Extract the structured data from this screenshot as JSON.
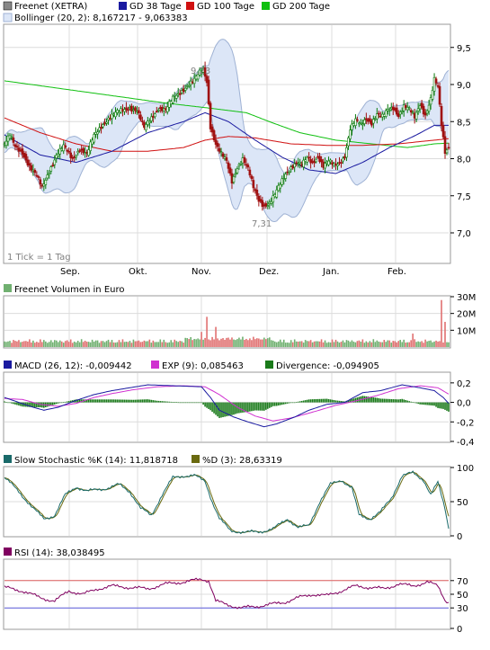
{
  "colors": {
    "background": "#ffffff",
    "grid": "#dcdcdc",
    "frame": "#9a9a9a",
    "bollinger_fill": "#dce6f7",
    "bollinger_line": "#9fb2d4",
    "candle_up": "#0a7a0a",
    "candle_down": "#a01010",
    "gd38": "#1a1aa0",
    "gd100": "#d01010",
    "gd200": "#10c010",
    "volume_up": "#70b070",
    "volume_down": "#e07070",
    "macd": "#1a1aa0",
    "exp": "#d030d0",
    "divergence": "#1a7a1a",
    "stoch_k": "#1a6a6a",
    "stoch_d": "#6a6a10",
    "rsi": "#800060",
    "rsi_upper": "#e06060",
    "rsi_lower": "#6060e0"
  },
  "price_panel": {
    "legend": [
      {
        "label": "Freenet (XETRA)",
        "color": "#888888"
      },
      {
        "label": "GD 38 Tage",
        "color": "#1a1aa0"
      },
      {
        "label": "GD 100 Tage",
        "color": "#d01010"
      },
      {
        "label": "GD 200 Tage",
        "color": "#10c010"
      }
    ],
    "bollinger_label": "Bollinger (20, 2): 8,167217 - 9,063383",
    "max_label": "9,23",
    "min_label": "7,31",
    "tick_note": "1 Tick = 1 Tag",
    "x_labels": [
      "Sep.",
      "Okt.",
      "Nov.",
      "Dez.",
      "Jan.",
      "Feb."
    ]
  },
  "volume_panel": {
    "legend": "Freenet Volumen in Euro"
  },
  "macd_panel": {
    "legend": [
      {
        "label": "MACD (26, 12): -0,009442",
        "color": "#1a1aa0"
      },
      {
        "label": "EXP (9): 0,085463",
        "color": "#d030d0"
      },
      {
        "label": "Divergence: -0,094905",
        "color": "#1a7a1a"
      }
    ]
  },
  "stoch_panel": {
    "legend": [
      {
        "label": "Slow Stochastic %K (14): 11,818718",
        "color": "#1a6a6a"
      },
      {
        "label": "%D (3): 28,63319",
        "color": "#6a6a10"
      }
    ]
  },
  "rsi_panel": {
    "legend": {
      "label": "RSI (14): 38,038495",
      "color": "#800060"
    }
  },
  "chart_data": [
    {
      "type": "line",
      "title": "Freenet (XETRA)",
      "x_months": [
        "Sep.",
        "Okt.",
        "Nov.",
        "Dez.",
        "Jan.",
        "Feb."
      ],
      "ylim": [
        6.6,
        9.8
      ],
      "yticks": [
        "7,0",
        "7,5",
        "8,0",
        "8,5",
        "9,0",
        "9,5"
      ],
      "annotations": {
        "max": 9.23,
        "min": 7.31
      },
      "close_anchors": [
        [
          0,
          8.2
        ],
        [
          3,
          8.3
        ],
        [
          6,
          8.15
        ],
        [
          10,
          8.1
        ],
        [
          14,
          7.9
        ],
        [
          18,
          7.75
        ],
        [
          21,
          7.6
        ],
        [
          25,
          7.85
        ],
        [
          29,
          8.05
        ],
        [
          33,
          8.15
        ],
        [
          38,
          8.0
        ],
        [
          42,
          8.15
        ],
        [
          46,
          8.05
        ],
        [
          50,
          8.3
        ],
        [
          54,
          8.45
        ],
        [
          58,
          8.55
        ],
        [
          62,
          8.6
        ],
        [
          66,
          8.65
        ],
        [
          70,
          8.7
        ],
        [
          74,
          8.65
        ],
        [
          78,
          8.4
        ],
        [
          82,
          8.55
        ],
        [
          86,
          8.7
        ],
        [
          90,
          8.65
        ],
        [
          94,
          8.8
        ],
        [
          98,
          8.9
        ],
        [
          102,
          9.0
        ],
        [
          106,
          9.05
        ],
        [
          109,
          9.15
        ],
        [
          111,
          9.2
        ],
        [
          113,
          9.05
        ],
        [
          115,
          8.45
        ],
        [
          118,
          8.2
        ],
        [
          121,
          8.05
        ],
        [
          124,
          7.95
        ],
        [
          127,
          7.7
        ],
        [
          130,
          7.9
        ],
        [
          133,
          8.0
        ],
        [
          136,
          7.85
        ],
        [
          139,
          7.6
        ],
        [
          142,
          7.45
        ],
        [
          145,
          7.38
        ],
        [
          148,
          7.4
        ],
        [
          151,
          7.5
        ],
        [
          154,
          7.65
        ],
        [
          157,
          7.8
        ],
        [
          160,
          7.9
        ],
        [
          163,
          7.95
        ],
        [
          166,
          7.9
        ],
        [
          169,
          8.0
        ],
        [
          172,
          7.95
        ],
        [
          175,
          8.05
        ],
        [
          178,
          7.9
        ],
        [
          181,
          7.95
        ],
        [
          184,
          7.9
        ],
        [
          187,
          7.95
        ],
        [
          190,
          8.05
        ],
        [
          193,
          8.4
        ],
        [
          196,
          8.5
        ],
        [
          199,
          8.45
        ],
        [
          202,
          8.55
        ],
        [
          205,
          8.5
        ],
        [
          208,
          8.6
        ],
        [
          211,
          8.55
        ],
        [
          214,
          8.65
        ],
        [
          217,
          8.7
        ],
        [
          220,
          8.6
        ],
        [
          223,
          8.7
        ],
        [
          226,
          8.65
        ],
        [
          229,
          8.55
        ],
        [
          232,
          8.75
        ],
        [
          235,
          8.6
        ],
        [
          238,
          8.8
        ],
        [
          240,
          9.05
        ],
        [
          242,
          8.95
        ],
        [
          244,
          8.45
        ],
        [
          246,
          8.1
        ],
        [
          248,
          8.17
        ]
      ],
      "gd38_anchors": [
        [
          0,
          8.32
        ],
        [
          20,
          8.05
        ],
        [
          40,
          7.95
        ],
        [
          60,
          8.1
        ],
        [
          80,
          8.35
        ],
        [
          100,
          8.5
        ],
        [
          112,
          8.62
        ],
        [
          125,
          8.5
        ],
        [
          140,
          8.25
        ],
        [
          155,
          8.02
        ],
        [
          170,
          7.85
        ],
        [
          185,
          7.8
        ],
        [
          200,
          7.95
        ],
        [
          215,
          8.15
        ],
        [
          230,
          8.32
        ],
        [
          240,
          8.45
        ],
        [
          248,
          8.45
        ]
      ],
      "gd100_anchors": [
        [
          0,
          8.55
        ],
        [
          20,
          8.35
        ],
        [
          40,
          8.2
        ],
        [
          60,
          8.1
        ],
        [
          80,
          8.1
        ],
        [
          100,
          8.15
        ],
        [
          112,
          8.25
        ],
        [
          125,
          8.3
        ],
        [
          140,
          8.28
        ],
        [
          160,
          8.2
        ],
        [
          180,
          8.18
        ],
        [
          200,
          8.18
        ],
        [
          220,
          8.2
        ],
        [
          240,
          8.25
        ],
        [
          248,
          8.27
        ]
      ],
      "gd200_anchors": [
        [
          0,
          9.05
        ],
        [
          30,
          8.95
        ],
        [
          60,
          8.85
        ],
        [
          90,
          8.75
        ],
        [
          115,
          8.68
        ],
        [
          135,
          8.62
        ],
        [
          150,
          8.48
        ],
        [
          165,
          8.35
        ],
        [
          185,
          8.25
        ],
        [
          205,
          8.2
        ],
        [
          225,
          8.15
        ],
        [
          240,
          8.2
        ],
        [
          248,
          8.21
        ]
      ]
    },
    {
      "type": "bar",
      "title": "Freenet Volumen in Euro",
      "ylim": [
        0,
        30000000
      ],
      "yticks": [
        "10M",
        "20M",
        "30M"
      ],
      "spikes": [
        [
          113,
          18000000
        ],
        [
          118,
          12000000
        ],
        [
          244,
          28000000
        ],
        [
          246,
          15000000
        ],
        [
          228,
          8000000
        ],
        [
          110,
          9000000
        ]
      ]
    },
    {
      "type": "line",
      "title": "MACD (26, 12)",
      "ylim": [
        -0.4,
        0.3
      ],
      "yticks": [
        "-0,4",
        "-0,2",
        "0,0",
        "0,2"
      ],
      "macd_anchors": [
        [
          0,
          0.05
        ],
        [
          8,
          0.0
        ],
        [
          16,
          -0.05
        ],
        [
          22,
          -0.08
        ],
        [
          30,
          -0.05
        ],
        [
          40,
          0.02
        ],
        [
          50,
          0.08
        ],
        [
          60,
          0.12
        ],
        [
          70,
          0.15
        ],
        [
          80,
          0.18
        ],
        [
          95,
          0.17
        ],
        [
          110,
          0.16
        ],
        [
          115,
          0.05
        ],
        [
          120,
          -0.08
        ],
        [
          128,
          -0.15
        ],
        [
          136,
          -0.2
        ],
        [
          145,
          -0.25
        ],
        [
          152,
          -0.22
        ],
        [
          162,
          -0.15
        ],
        [
          170,
          -0.08
        ],
        [
          180,
          -0.02
        ],
        [
          190,
          0.0
        ],
        [
          200,
          0.1
        ],
        [
          210,
          0.12
        ],
        [
          222,
          0.18
        ],
        [
          232,
          0.15
        ],
        [
          240,
          0.12
        ],
        [
          245,
          0.05
        ],
        [
          248,
          -0.01
        ]
      ],
      "exp_anchors": [
        [
          0,
          0.04
        ],
        [
          10,
          0.03
        ],
        [
          20,
          -0.02
        ],
        [
          30,
          -0.04
        ],
        [
          40,
          -0.01
        ],
        [
          50,
          0.05
        ],
        [
          60,
          0.09
        ],
        [
          72,
          0.13
        ],
        [
          85,
          0.16
        ],
        [
          100,
          0.17
        ],
        [
          112,
          0.16
        ],
        [
          120,
          0.08
        ],
        [
          130,
          -0.05
        ],
        [
          140,
          -0.14
        ],
        [
          150,
          -0.19
        ],
        [
          160,
          -0.16
        ],
        [
          172,
          -0.1
        ],
        [
          185,
          -0.03
        ],
        [
          195,
          0.01
        ],
        [
          208,
          0.07
        ],
        [
          220,
          0.14
        ],
        [
          232,
          0.17
        ],
        [
          242,
          0.15
        ],
        [
          248,
          0.085
        ]
      ],
      "final": {
        "macd": -0.009442,
        "exp": 0.085463,
        "divergence": -0.094905
      }
    },
    {
      "type": "line",
      "title": "Slow Stochastic %K (14)",
      "ylim": [
        0,
        100
      ],
      "yticks": [
        "0",
        "50",
        "100"
      ],
      "k_anchors": [
        [
          0,
          85
        ],
        [
          8,
          65
        ],
        [
          16,
          40
        ],
        [
          22,
          25
        ],
        [
          28,
          30
        ],
        [
          34,
          60
        ],
        [
          40,
          72
        ],
        [
          46,
          65
        ],
        [
          52,
          68
        ],
        [
          58,
          70
        ],
        [
          64,
          75
        ],
        [
          70,
          65
        ],
        [
          76,
          40
        ],
        [
          82,
          30
        ],
        [
          88,
          60
        ],
        [
          94,
          85
        ],
        [
          100,
          88
        ],
        [
          106,
          88
        ],
        [
          112,
          80
        ],
        [
          116,
          50
        ],
        [
          120,
          25
        ],
        [
          126,
          8
        ],
        [
          134,
          5
        ],
        [
          142,
          6
        ],
        [
          150,
          10
        ],
        [
          158,
          25
        ],
        [
          164,
          12
        ],
        [
          170,
          15
        ],
        [
          176,
          50
        ],
        [
          182,
          75
        ],
        [
          188,
          82
        ],
        [
          194,
          70
        ],
        [
          198,
          30
        ],
        [
          204,
          25
        ],
        [
          210,
          35
        ],
        [
          216,
          55
        ],
        [
          222,
          88
        ],
        [
          228,
          92
        ],
        [
          234,
          82
        ],
        [
          238,
          60
        ],
        [
          242,
          78
        ],
        [
          246,
          40
        ],
        [
          248,
          12
        ]
      ],
      "final": {
        "k": 11.818718,
        "d": 28.63319
      }
    },
    {
      "type": "line",
      "title": "RSI (14)",
      "ylim": [
        0,
        100
      ],
      "yticks": [
        "0",
        "30",
        "50",
        "70"
      ],
      "levels": [
        30,
        70
      ],
      "rsi_anchors": [
        [
          0,
          60
        ],
        [
          10,
          55
        ],
        [
          20,
          45
        ],
        [
          28,
          40
        ],
        [
          36,
          55
        ],
        [
          44,
          50
        ],
        [
          52,
          58
        ],
        [
          60,
          62
        ],
        [
          70,
          60
        ],
        [
          80,
          58
        ],
        [
          90,
          65
        ],
        [
          100,
          68
        ],
        [
          110,
          72
        ],
        [
          114,
          70
        ],
        [
          118,
          40
        ],
        [
          124,
          35
        ],
        [
          132,
          30
        ],
        [
          140,
          32
        ],
        [
          148,
          35
        ],
        [
          156,
          38
        ],
        [
          164,
          45
        ],
        [
          172,
          50
        ],
        [
          180,
          48
        ],
        [
          188,
          55
        ],
        [
          196,
          62
        ],
        [
          204,
          60
        ],
        [
          212,
          58
        ],
        [
          220,
          65
        ],
        [
          228,
          62
        ],
        [
          236,
          68
        ],
        [
          242,
          62
        ],
        [
          246,
          42
        ],
        [
          248,
          38
        ]
      ],
      "final": 38.038495
    }
  ]
}
